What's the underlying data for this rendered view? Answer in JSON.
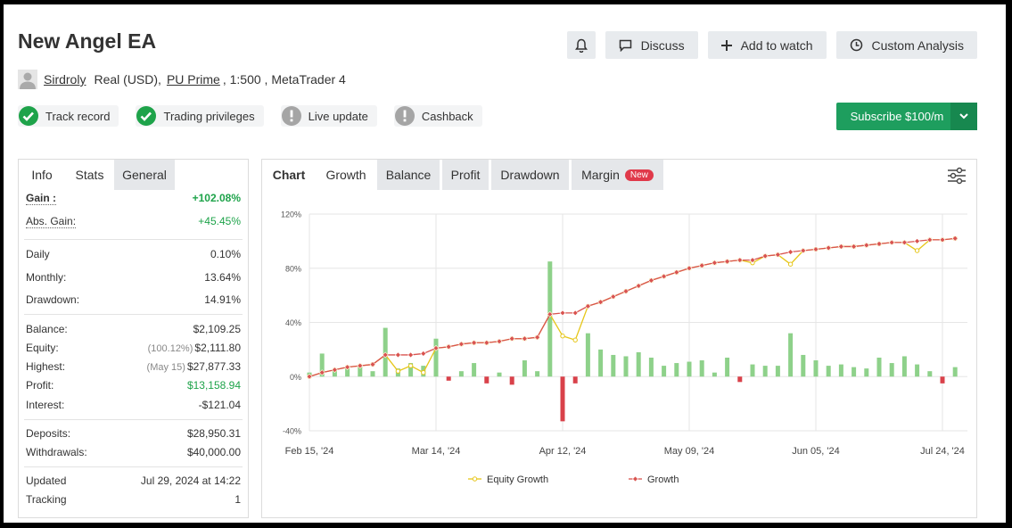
{
  "header": {
    "title": "New Angel EA",
    "user": "Sirdroly",
    "account": "Real (USD),",
    "broker": "PU Prime",
    "details": ", 1:500 , MetaTrader 4"
  },
  "buttons": [
    "Discuss",
    "Add to watch",
    "Custom Analysis"
  ],
  "badges": [
    {
      "label": "Track record",
      "status": "ok"
    },
    {
      "label": "Trading privileges",
      "status": "ok"
    },
    {
      "label": "Live update",
      "status": "warn"
    },
    {
      "label": "Cashback",
      "status": "warn"
    }
  ],
  "subscribe": "Subscribe $100/m",
  "left_tabs": [
    "Info",
    "Stats",
    "General"
  ],
  "stats": {
    "groups": [
      [
        {
          "label": "Gain :",
          "value": "+102.08%",
          "color": "#1ea34a"
        },
        {
          "label": "Abs. Gain:",
          "value": "+45.45%",
          "color": "#1ea34a"
        }
      ],
      [
        {
          "label": "Daily",
          "value": "0.10%"
        },
        {
          "label": "Monthly:",
          "value": "13.64%"
        },
        {
          "label": "Drawdown:",
          "value": "14.91%"
        }
      ],
      [
        {
          "label": "Balance:",
          "value": "$2,109.25"
        },
        {
          "label": "Equity:",
          "note": "(100.12%)",
          "value": "$2,111.80"
        },
        {
          "label": "Highest:",
          "note": "(May 15)",
          "value": "$27,877.33"
        },
        {
          "label": "Profit:",
          "value": "$13,158.94",
          "color": "#1ea34a"
        },
        {
          "label": "Interest:",
          "value": "-$121.04"
        }
      ],
      [
        {
          "label": "Deposits:",
          "value": "$28,950.31"
        },
        {
          "label": "Withdrawals:",
          "value": "$40,000.00"
        }
      ],
      [
        {
          "label": "Updated",
          "value": "Jul 29, 2024 at 14:22"
        },
        {
          "label": "Tracking",
          "value": "1"
        }
      ]
    ]
  },
  "chart_tabs": [
    "Chart",
    "Growth",
    "Balance",
    "Profit",
    "Drawdown",
    "Margin"
  ],
  "new_badge": "New",
  "chart_data": {
    "type": "line",
    "categories": [
      "Feb 15, '24",
      null,
      null,
      null,
      null,
      null,
      null,
      null,
      null,
      null,
      "Mar 14, '24",
      null,
      null,
      null,
      null,
      null,
      null,
      null,
      null,
      null,
      "Apr 12, '24",
      null,
      null,
      null,
      null,
      null,
      null,
      null,
      null,
      null,
      "May 09, '24",
      null,
      null,
      null,
      null,
      null,
      null,
      null,
      null,
      null,
      "Jun 05, '24",
      null,
      null,
      null,
      null,
      null,
      null,
      null,
      null,
      null,
      "Jul 24, '24",
      null
    ],
    "series": [
      {
        "name": "Equity Growth",
        "color": "#e6c619",
        "marker": "circle",
        "values": [
          0,
          3,
          5,
          7,
          8,
          9,
          16,
          4,
          8,
          3,
          21,
          22,
          24,
          25,
          25,
          26,
          28,
          28,
          29,
          46,
          30,
          27,
          52,
          55,
          59,
          63,
          67,
          71,
          74,
          77,
          80,
          82,
          84,
          85,
          86,
          84,
          89,
          90,
          83,
          93,
          94,
          95,
          96,
          96,
          97,
          98,
          99,
          99,
          93,
          101,
          101,
          102
        ]
      },
      {
        "name": "Growth",
        "color": "#d9534f",
        "marker": "diamond",
        "values": [
          0,
          3,
          5,
          7,
          8,
          9,
          16,
          16,
          16,
          17,
          21,
          22,
          24,
          25,
          25,
          26,
          28,
          28,
          29,
          46,
          47,
          47,
          52,
          55,
          59,
          63,
          67,
          71,
          74,
          77,
          80,
          82,
          84,
          85,
          86,
          86,
          89,
          90,
          92,
          93,
          94,
          95,
          96,
          96,
          97,
          98,
          99,
          99,
          100,
          101,
          101,
          102
        ]
      }
    ],
    "bars": {
      "positive_color": "#8ed18a",
      "negative_color": "#d9414a",
      "values": [
        3,
        17,
        5,
        6,
        8,
        4,
        36,
        6,
        10,
        8,
        28,
        -3,
        4,
        10,
        -5,
        3,
        -6,
        12,
        4,
        85,
        -33,
        -5,
        32,
        20,
        16,
        15,
        18,
        14,
        8,
        10,
        11,
        12,
        3,
        14,
        -4,
        9,
        8,
        8,
        32,
        16,
        12,
        8,
        9,
        7,
        6,
        14,
        10,
        15,
        9,
        4,
        -5,
        7
      ]
    },
    "ylim": [
      -40,
      120
    ],
    "yticks": [
      {
        "value": -40,
        "label": "-40%"
      },
      {
        "value": 0,
        "label": "0%"
      },
      {
        "value": 40,
        "label": "40%"
      },
      {
        "value": 80,
        "label": "80%"
      },
      {
        "value": 120,
        "label": "120%"
      }
    ],
    "grid": true
  }
}
